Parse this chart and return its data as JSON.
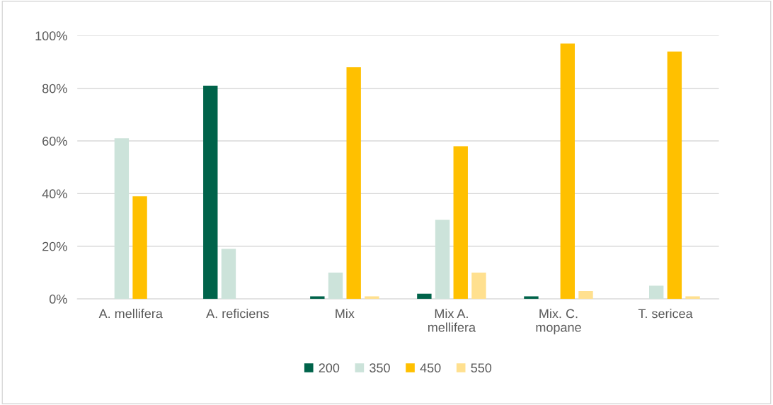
{
  "chart_data": {
    "type": "bar",
    "categories": [
      "A. mellifera",
      "A. reficiens",
      "Mix",
      "Mix A.\nmellifera",
      "Mix. C.\nmopane",
      "T. sericea"
    ],
    "series": [
      {
        "name": "200",
        "color": "#00634a",
        "values": [
          0,
          81,
          1,
          2,
          1,
          0
        ]
      },
      {
        "name": "350",
        "color": "#cce3da",
        "values": [
          61,
          19,
          10,
          30,
          0,
          5
        ]
      },
      {
        "name": "450",
        "color": "#ffc000",
        "values": [
          39,
          0,
          88,
          58,
          97,
          94
        ]
      },
      {
        "name": "550",
        "color": "#ffe08f",
        "values": [
          0,
          0,
          1,
          10,
          3,
          1
        ]
      }
    ],
    "ylim": [
      0,
      100
    ],
    "yticks": [
      {
        "value": 0,
        "label": "0%"
      },
      {
        "value": 20,
        "label": "20%"
      },
      {
        "value": 40,
        "label": "40%"
      },
      {
        "value": 60,
        "label": "60%"
      },
      {
        "value": 80,
        "label": "80%"
      },
      {
        "value": 100,
        "label": "100%"
      }
    ],
    "grid": "y",
    "legend": "bottom"
  }
}
